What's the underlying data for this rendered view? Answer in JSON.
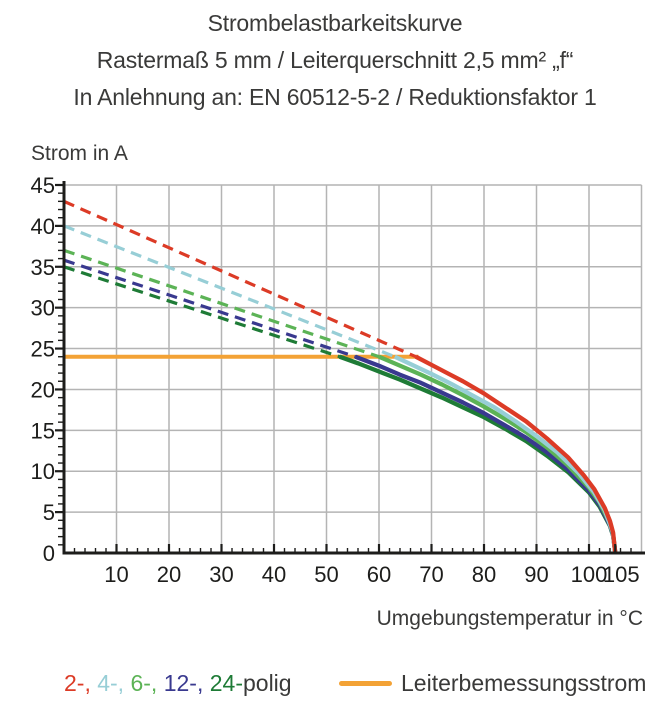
{
  "title": {
    "line1": "Strombelastbarkeitskurve",
    "line2": "Rastermaß 5 mm / Leiterquerschnitt 2,5 mm² „f“",
    "line3": "In Anlehnung an: EN 60512-5-2 / Reduktionsfaktor 1"
  },
  "legend": {
    "pole_items": [
      {
        "text": "2-,",
        "color": "#dc3b26"
      },
      {
        "text": "4-,",
        "color": "#97ced6"
      },
      {
        "text": "6-,",
        "color": "#5cb356"
      },
      {
        "text": "12-,",
        "color": "#39398f"
      },
      {
        "text": "24-",
        "color": "#1e7b36"
      }
    ],
    "pole_suffix": "polig",
    "rated_label": "Leiterbemessungsstrom"
  },
  "chart_data": {
    "type": "line",
    "title": "Strombelastbarkeitskurve",
    "xlabel": "Umgebungstemperatur in °C",
    "ylabel": "Strom in A",
    "x_axis": {
      "min": 0,
      "max": 110,
      "grid_step": 10,
      "minor_tick_step": 2,
      "major_ticks": [
        10,
        20,
        30,
        40,
        50,
        60,
        70,
        80,
        90,
        100,
        105
      ]
    },
    "y_axis": {
      "min": 0,
      "max": 45,
      "grid_step": 5,
      "minor_tick_step": 1,
      "major_ticks": [
        0,
        5,
        10,
        15,
        20,
        25,
        30,
        35,
        40,
        45
      ]
    },
    "colors": {
      "grid": "#b4b4b4",
      "axis": "#1d1d1b",
      "text": "#3a3a39"
    },
    "rated_current": {
      "label": "Leiterbemessungsstrom",
      "value_A": 24,
      "temp_span_C": [
        0,
        67.5
      ],
      "color": "#f3a235"
    },
    "series": [
      {
        "name": "2-polig",
        "color": "#dc3b26",
        "current_at_0C_A": 43,
        "derating_dashed": [
          [
            0,
            43
          ],
          [
            67,
            24
          ]
        ],
        "solid_curve": [
          [
            67,
            24
          ],
          [
            70,
            23
          ],
          [
            73,
            22
          ],
          [
            76,
            21
          ],
          [
            80,
            19.5
          ],
          [
            84,
            17.8
          ],
          [
            88,
            16.1
          ],
          [
            92,
            14
          ],
          [
            96,
            11.7
          ],
          [
            99,
            9.5
          ],
          [
            101,
            7.8
          ],
          [
            103,
            5.5
          ],
          [
            104,
            3.9
          ],
          [
            104.6,
            2.5
          ],
          [
            105,
            0
          ]
        ]
      },
      {
        "name": "4-polig",
        "color": "#97ced6",
        "current_at_0C_A": 40,
        "derating_dashed": [
          [
            0,
            40
          ],
          [
            63,
            24
          ]
        ],
        "solid_curve": [
          [
            63,
            24
          ],
          [
            66,
            23.1
          ],
          [
            70,
            21.9
          ],
          [
            74,
            20.6
          ],
          [
            78,
            19.2
          ],
          [
            82,
            17.8
          ],
          [
            86,
            16.1
          ],
          [
            90,
            14.3
          ],
          [
            94,
            12.3
          ],
          [
            98,
            9.8
          ],
          [
            101,
            7.4
          ],
          [
            103,
            5.2
          ],
          [
            104.5,
            2.6
          ],
          [
            105,
            0
          ]
        ]
      },
      {
        "name": "6-polig",
        "color": "#5cb356",
        "current_at_0C_A": 37,
        "derating_dashed": [
          [
            0,
            37
          ],
          [
            60,
            24
          ]
        ],
        "solid_curve": [
          [
            60,
            24
          ],
          [
            64,
            22.9
          ],
          [
            68,
            21.8
          ],
          [
            72,
            20.6
          ],
          [
            76,
            19.3
          ],
          [
            80,
            17.9
          ],
          [
            84,
            16.4
          ],
          [
            88,
            14.8
          ],
          [
            92,
            12.9
          ],
          [
            96,
            10.7
          ],
          [
            100,
            8
          ],
          [
            102,
            6.2
          ],
          [
            104,
            3.6
          ],
          [
            104.6,
            2.3
          ],
          [
            105,
            0
          ]
        ]
      },
      {
        "name": "12-polig",
        "color": "#39398f",
        "current_at_0C_A": 35.8,
        "derating_dashed": [
          [
            0,
            35.8
          ],
          [
            55.5,
            24
          ]
        ],
        "solid_curve": [
          [
            55.5,
            24
          ],
          [
            60,
            22.9
          ],
          [
            64,
            21.8
          ],
          [
            68,
            20.8
          ],
          [
            72,
            19.6
          ],
          [
            76,
            18.4
          ],
          [
            80,
            17.1
          ],
          [
            84,
            15.6
          ],
          [
            88,
            14.1
          ],
          [
            92,
            12.3
          ],
          [
            96,
            10.2
          ],
          [
            100,
            7.6
          ],
          [
            102,
            5.9
          ],
          [
            104,
            3.4
          ],
          [
            104.6,
            2.2
          ],
          [
            105,
            0
          ]
        ]
      },
      {
        "name": "24-polig",
        "color": "#1e7b36",
        "current_at_0C_A": 35,
        "derating_dashed": [
          [
            0,
            35
          ],
          [
            52.5,
            24
          ]
        ],
        "solid_curve": [
          [
            52.5,
            24
          ],
          [
            56,
            23.2
          ],
          [
            60,
            22.2
          ],
          [
            64,
            21.2
          ],
          [
            68,
            20.1
          ],
          [
            72,
            19
          ],
          [
            76,
            17.8
          ],
          [
            80,
            16.6
          ],
          [
            84,
            15.2
          ],
          [
            88,
            13.7
          ],
          [
            92,
            11.9
          ],
          [
            96,
            9.9
          ],
          [
            100,
            7.4
          ],
          [
            102,
            5.7
          ],
          [
            104,
            3.3
          ],
          [
            104.6,
            2.1
          ],
          [
            105,
            0
          ]
        ]
      }
    ]
  }
}
